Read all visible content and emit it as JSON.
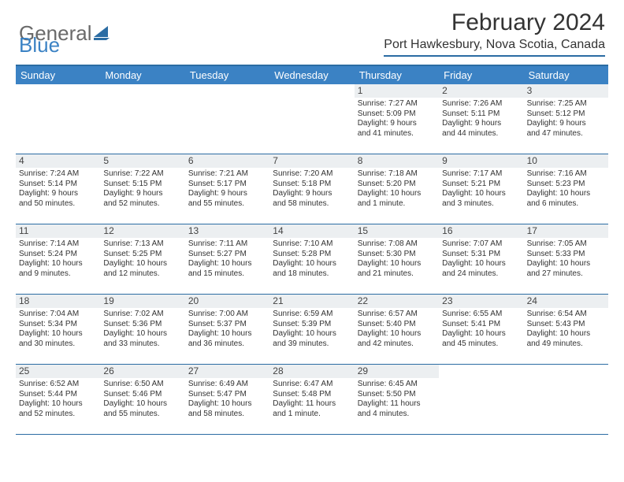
{
  "logo": {
    "general": "General",
    "blue": "Blue"
  },
  "header": {
    "month_title": "February 2024",
    "location": "Port Hawkesbury, Nova Scotia, Canada"
  },
  "colors": {
    "brand_blue": "#3b82c4",
    "rule_blue": "#2b6ca3",
    "daynum_bg": "#eceff1",
    "text": "#333333",
    "logo_gray": "#6a6a6a"
  },
  "day_names": [
    "Sunday",
    "Monday",
    "Tuesday",
    "Wednesday",
    "Thursday",
    "Friday",
    "Saturday"
  ],
  "weeks": [
    [
      null,
      null,
      null,
      null,
      {
        "day": "1",
        "sunrise": "Sunrise: 7:27 AM",
        "sunset": "Sunset: 5:09 PM",
        "daylight1": "Daylight: 9 hours",
        "daylight2": "and 41 minutes."
      },
      {
        "day": "2",
        "sunrise": "Sunrise: 7:26 AM",
        "sunset": "Sunset: 5:11 PM",
        "daylight1": "Daylight: 9 hours",
        "daylight2": "and 44 minutes."
      },
      {
        "day": "3",
        "sunrise": "Sunrise: 7:25 AM",
        "sunset": "Sunset: 5:12 PM",
        "daylight1": "Daylight: 9 hours",
        "daylight2": "and 47 minutes."
      }
    ],
    [
      {
        "day": "4",
        "sunrise": "Sunrise: 7:24 AM",
        "sunset": "Sunset: 5:14 PM",
        "daylight1": "Daylight: 9 hours",
        "daylight2": "and 50 minutes."
      },
      {
        "day": "5",
        "sunrise": "Sunrise: 7:22 AM",
        "sunset": "Sunset: 5:15 PM",
        "daylight1": "Daylight: 9 hours",
        "daylight2": "and 52 minutes."
      },
      {
        "day": "6",
        "sunrise": "Sunrise: 7:21 AM",
        "sunset": "Sunset: 5:17 PM",
        "daylight1": "Daylight: 9 hours",
        "daylight2": "and 55 minutes."
      },
      {
        "day": "7",
        "sunrise": "Sunrise: 7:20 AM",
        "sunset": "Sunset: 5:18 PM",
        "daylight1": "Daylight: 9 hours",
        "daylight2": "and 58 minutes."
      },
      {
        "day": "8",
        "sunrise": "Sunrise: 7:18 AM",
        "sunset": "Sunset: 5:20 PM",
        "daylight1": "Daylight: 10 hours",
        "daylight2": "and 1 minute."
      },
      {
        "day": "9",
        "sunrise": "Sunrise: 7:17 AM",
        "sunset": "Sunset: 5:21 PM",
        "daylight1": "Daylight: 10 hours",
        "daylight2": "and 3 minutes."
      },
      {
        "day": "10",
        "sunrise": "Sunrise: 7:16 AM",
        "sunset": "Sunset: 5:23 PM",
        "daylight1": "Daylight: 10 hours",
        "daylight2": "and 6 minutes."
      }
    ],
    [
      {
        "day": "11",
        "sunrise": "Sunrise: 7:14 AM",
        "sunset": "Sunset: 5:24 PM",
        "daylight1": "Daylight: 10 hours",
        "daylight2": "and 9 minutes."
      },
      {
        "day": "12",
        "sunrise": "Sunrise: 7:13 AM",
        "sunset": "Sunset: 5:25 PM",
        "daylight1": "Daylight: 10 hours",
        "daylight2": "and 12 minutes."
      },
      {
        "day": "13",
        "sunrise": "Sunrise: 7:11 AM",
        "sunset": "Sunset: 5:27 PM",
        "daylight1": "Daylight: 10 hours",
        "daylight2": "and 15 minutes."
      },
      {
        "day": "14",
        "sunrise": "Sunrise: 7:10 AM",
        "sunset": "Sunset: 5:28 PM",
        "daylight1": "Daylight: 10 hours",
        "daylight2": "and 18 minutes."
      },
      {
        "day": "15",
        "sunrise": "Sunrise: 7:08 AM",
        "sunset": "Sunset: 5:30 PM",
        "daylight1": "Daylight: 10 hours",
        "daylight2": "and 21 minutes."
      },
      {
        "day": "16",
        "sunrise": "Sunrise: 7:07 AM",
        "sunset": "Sunset: 5:31 PM",
        "daylight1": "Daylight: 10 hours",
        "daylight2": "and 24 minutes."
      },
      {
        "day": "17",
        "sunrise": "Sunrise: 7:05 AM",
        "sunset": "Sunset: 5:33 PM",
        "daylight1": "Daylight: 10 hours",
        "daylight2": "and 27 minutes."
      }
    ],
    [
      {
        "day": "18",
        "sunrise": "Sunrise: 7:04 AM",
        "sunset": "Sunset: 5:34 PM",
        "daylight1": "Daylight: 10 hours",
        "daylight2": "and 30 minutes."
      },
      {
        "day": "19",
        "sunrise": "Sunrise: 7:02 AM",
        "sunset": "Sunset: 5:36 PM",
        "daylight1": "Daylight: 10 hours",
        "daylight2": "and 33 minutes."
      },
      {
        "day": "20",
        "sunrise": "Sunrise: 7:00 AM",
        "sunset": "Sunset: 5:37 PM",
        "daylight1": "Daylight: 10 hours",
        "daylight2": "and 36 minutes."
      },
      {
        "day": "21",
        "sunrise": "Sunrise: 6:59 AM",
        "sunset": "Sunset: 5:39 PM",
        "daylight1": "Daylight: 10 hours",
        "daylight2": "and 39 minutes."
      },
      {
        "day": "22",
        "sunrise": "Sunrise: 6:57 AM",
        "sunset": "Sunset: 5:40 PM",
        "daylight1": "Daylight: 10 hours",
        "daylight2": "and 42 minutes."
      },
      {
        "day": "23",
        "sunrise": "Sunrise: 6:55 AM",
        "sunset": "Sunset: 5:41 PM",
        "daylight1": "Daylight: 10 hours",
        "daylight2": "and 45 minutes."
      },
      {
        "day": "24",
        "sunrise": "Sunrise: 6:54 AM",
        "sunset": "Sunset: 5:43 PM",
        "daylight1": "Daylight: 10 hours",
        "daylight2": "and 49 minutes."
      }
    ],
    [
      {
        "day": "25",
        "sunrise": "Sunrise: 6:52 AM",
        "sunset": "Sunset: 5:44 PM",
        "daylight1": "Daylight: 10 hours",
        "daylight2": "and 52 minutes."
      },
      {
        "day": "26",
        "sunrise": "Sunrise: 6:50 AM",
        "sunset": "Sunset: 5:46 PM",
        "daylight1": "Daylight: 10 hours",
        "daylight2": "and 55 minutes."
      },
      {
        "day": "27",
        "sunrise": "Sunrise: 6:49 AM",
        "sunset": "Sunset: 5:47 PM",
        "daylight1": "Daylight: 10 hours",
        "daylight2": "and 58 minutes."
      },
      {
        "day": "28",
        "sunrise": "Sunrise: 6:47 AM",
        "sunset": "Sunset: 5:48 PM",
        "daylight1": "Daylight: 11 hours",
        "daylight2": "and 1 minute."
      },
      {
        "day": "29",
        "sunrise": "Sunrise: 6:45 AM",
        "sunset": "Sunset: 5:50 PM",
        "daylight1": "Daylight: 11 hours",
        "daylight2": "and 4 minutes."
      },
      null,
      null
    ]
  ]
}
